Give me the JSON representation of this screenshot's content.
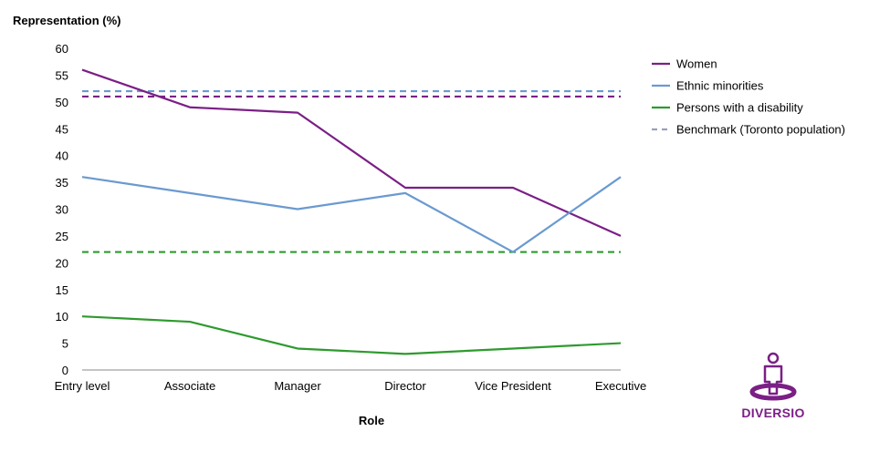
{
  "chart_data": {
    "type": "line",
    "title": "",
    "ylabel": "Representation (%)",
    "xlabel": "Role",
    "categories": [
      "Entry level",
      "Associate",
      "Manager",
      "Director",
      "Vice President",
      "Executive"
    ],
    "ylim": [
      0,
      60
    ],
    "yticks": [
      0,
      5,
      10,
      15,
      20,
      25,
      30,
      35,
      40,
      45,
      50,
      55,
      60
    ],
    "grid": false,
    "legend_position": "right",
    "series": [
      {
        "name": "Women",
        "color": "#7b1f86",
        "style": "solid",
        "values": [
          56,
          49,
          48,
          34,
          34,
          25
        ]
      },
      {
        "name": "Ethnic minorities",
        "color": "#6a9ad0",
        "style": "solid",
        "values": [
          36,
          33,
          30,
          33,
          22,
          36
        ]
      },
      {
        "name": "Persons with a disability",
        "color": "#2e9a2e",
        "style": "solid",
        "values": [
          10,
          9,
          4,
          3,
          4,
          5
        ]
      }
    ],
    "benchmarks": [
      {
        "of": "Ethnic minorities",
        "color": "#6a9ad0",
        "value": 52
      },
      {
        "of": "Women",
        "color": "#7b1f86",
        "value": 51
      },
      {
        "of": "Persons with a disability",
        "color": "#2e9a2e",
        "value": 22
      }
    ],
    "legend": [
      {
        "label": "Women",
        "color": "#7b1f86",
        "style": "solid"
      },
      {
        "label": "Ethnic minorities",
        "color": "#6a9ad0",
        "style": "solid"
      },
      {
        "label": "Persons with a disability",
        "color": "#2e9a2e",
        "style": "solid"
      },
      {
        "label": "Benchmark (Toronto population)",
        "color": "#9aa0b8",
        "style": "dashed"
      }
    ]
  },
  "logo": {
    "name": "DIVERSIO",
    "color": "#7b1f86"
  }
}
